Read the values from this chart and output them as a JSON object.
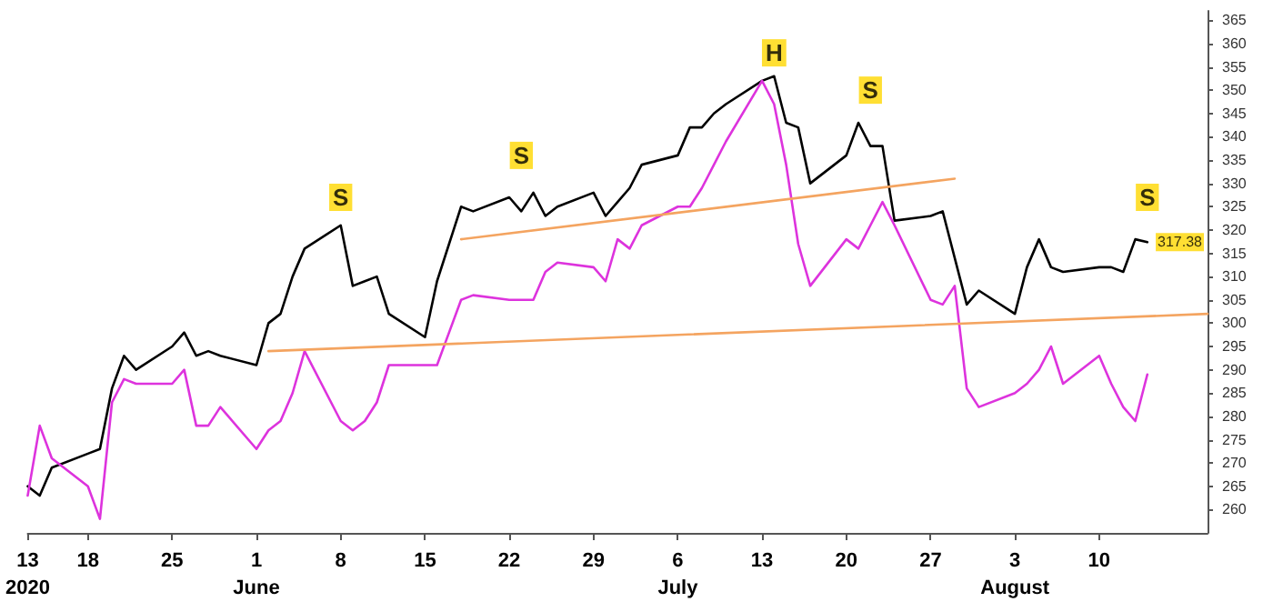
{
  "chart_data": {
    "type": "line",
    "x": [
      "2020-05-13",
      "2020-05-14",
      "2020-05-15",
      "2020-05-18",
      "2020-05-19",
      "2020-05-20",
      "2020-05-21",
      "2020-05-22",
      "2020-05-25",
      "2020-05-26",
      "2020-05-27",
      "2020-05-28",
      "2020-05-29",
      "2020-06-01",
      "2020-06-02",
      "2020-06-03",
      "2020-06-04",
      "2020-06-05",
      "2020-06-08",
      "2020-06-09",
      "2020-06-10",
      "2020-06-11",
      "2020-06-12",
      "2020-06-15",
      "2020-06-16",
      "2020-06-17",
      "2020-06-18",
      "2020-06-19",
      "2020-06-22",
      "2020-06-23",
      "2020-06-24",
      "2020-06-25",
      "2020-06-26",
      "2020-06-29",
      "2020-06-30",
      "2020-07-01",
      "2020-07-02",
      "2020-07-03",
      "2020-07-06",
      "2020-07-07",
      "2020-07-08",
      "2020-07-09",
      "2020-07-10",
      "2020-07-13",
      "2020-07-14",
      "2020-07-15",
      "2020-07-16",
      "2020-07-17",
      "2020-07-20",
      "2020-07-21",
      "2020-07-22",
      "2020-07-23",
      "2020-07-24",
      "2020-07-27",
      "2020-07-28",
      "2020-07-29",
      "2020-07-30",
      "2020-07-31",
      "2020-08-03",
      "2020-08-04",
      "2020-08-05",
      "2020-08-06",
      "2020-08-07",
      "2020-08-10",
      "2020-08-11",
      "2020-08-12",
      "2020-08-13",
      "2020-08-14"
    ],
    "series": [
      {
        "color": "#000000",
        "values": [
          265,
          263,
          269,
          272,
          273,
          286,
          293,
          290,
          295,
          298,
          293,
          294,
          293,
          291,
          300,
          302,
          310,
          316,
          321,
          308,
          309,
          310,
          302,
          297,
          309,
          317,
          325,
          324,
          327,
          324,
          328,
          323,
          325,
          328,
          323,
          326,
          329,
          334,
          336,
          342,
          342,
          345,
          347,
          352,
          353,
          343,
          342,
          330,
          336,
          343,
          338,
          338,
          322,
          323,
          324,
          314,
          304,
          307,
          302,
          312,
          318,
          312,
          311,
          312,
          312,
          311,
          318,
          317.38
        ]
      },
      {
        "color": "#dd33dd",
        "values": [
          263,
          278,
          271,
          265,
          258,
          283,
          288,
          287,
          287,
          290,
          278,
          278,
          282,
          273,
          277,
          279,
          285,
          294,
          279,
          277,
          279,
          283,
          291,
          291,
          291,
          298,
          305,
          306,
          305,
          305,
          305,
          311,
          313,
          312,
          309,
          318,
          316,
          321,
          325,
          325,
          329,
          334,
          339,
          352,
          347,
          334,
          317,
          308,
          318,
          316,
          321,
          326,
          321,
          305,
          304,
          308,
          286,
          282,
          285,
          287,
          290,
          295,
          287,
          293,
          287,
          282,
          279,
          289
        ]
      },
      {
        "color": "#f4a460",
        "x": [
          "2020-06-18",
          "2020-07-29"
        ],
        "values": [
          318,
          331
        ]
      },
      {
        "color": "#f4a460",
        "x": [
          "2020-06-02",
          "2020-08-19"
        ],
        "values": [
          294,
          302
        ]
      }
    ],
    "xlim": [
      "2020-05-13",
      "2020-08-19"
    ],
    "xticks": [
      {
        "value": "2020-05-13",
        "label": "13\n2020"
      },
      {
        "value": "2020-05-18",
        "label": "18"
      },
      {
        "value": "2020-05-25",
        "label": "25"
      },
      {
        "value": "2020-06-01",
        "label": "1\nJune"
      },
      {
        "value": "2020-06-08",
        "label": "8"
      },
      {
        "value": "2020-06-15",
        "label": "15"
      },
      {
        "value": "2020-06-22",
        "label": "22"
      },
      {
        "value": "2020-06-29",
        "label": "29"
      },
      {
        "value": "2020-07-06",
        "label": "6\nJuly"
      },
      {
        "value": "2020-07-13",
        "label": "13"
      },
      {
        "value": "2020-07-20",
        "label": "20"
      },
      {
        "value": "2020-07-27",
        "label": "27"
      },
      {
        "value": "2020-08-03",
        "label": "3\nAugust"
      },
      {
        "value": "2020-08-10",
        "label": "10"
      }
    ],
    "ylim": [
      255,
      367
    ],
    "yticks": [
      260,
      265,
      270,
      275,
      280,
      285,
      290,
      295,
      300,
      305,
      310,
      315,
      320,
      325,
      330,
      335,
      340,
      345,
      350,
      355,
      360,
      365
    ],
    "annotations": [
      {
        "text": "S",
        "x": "2020-06-08",
        "y": 327
      },
      {
        "text": "S",
        "x": "2020-06-23",
        "y": 336
      },
      {
        "text": "H",
        "x": "2020-07-14",
        "y": 358
      },
      {
        "text": "S",
        "x": "2020-07-22",
        "y": 350
      },
      {
        "text": "S",
        "x": "2020-08-14",
        "y": 327
      },
      {
        "text": "317.38",
        "y": 317.38
      }
    ],
    "grid": false,
    "marker": "none",
    "line_style": "solid"
  }
}
